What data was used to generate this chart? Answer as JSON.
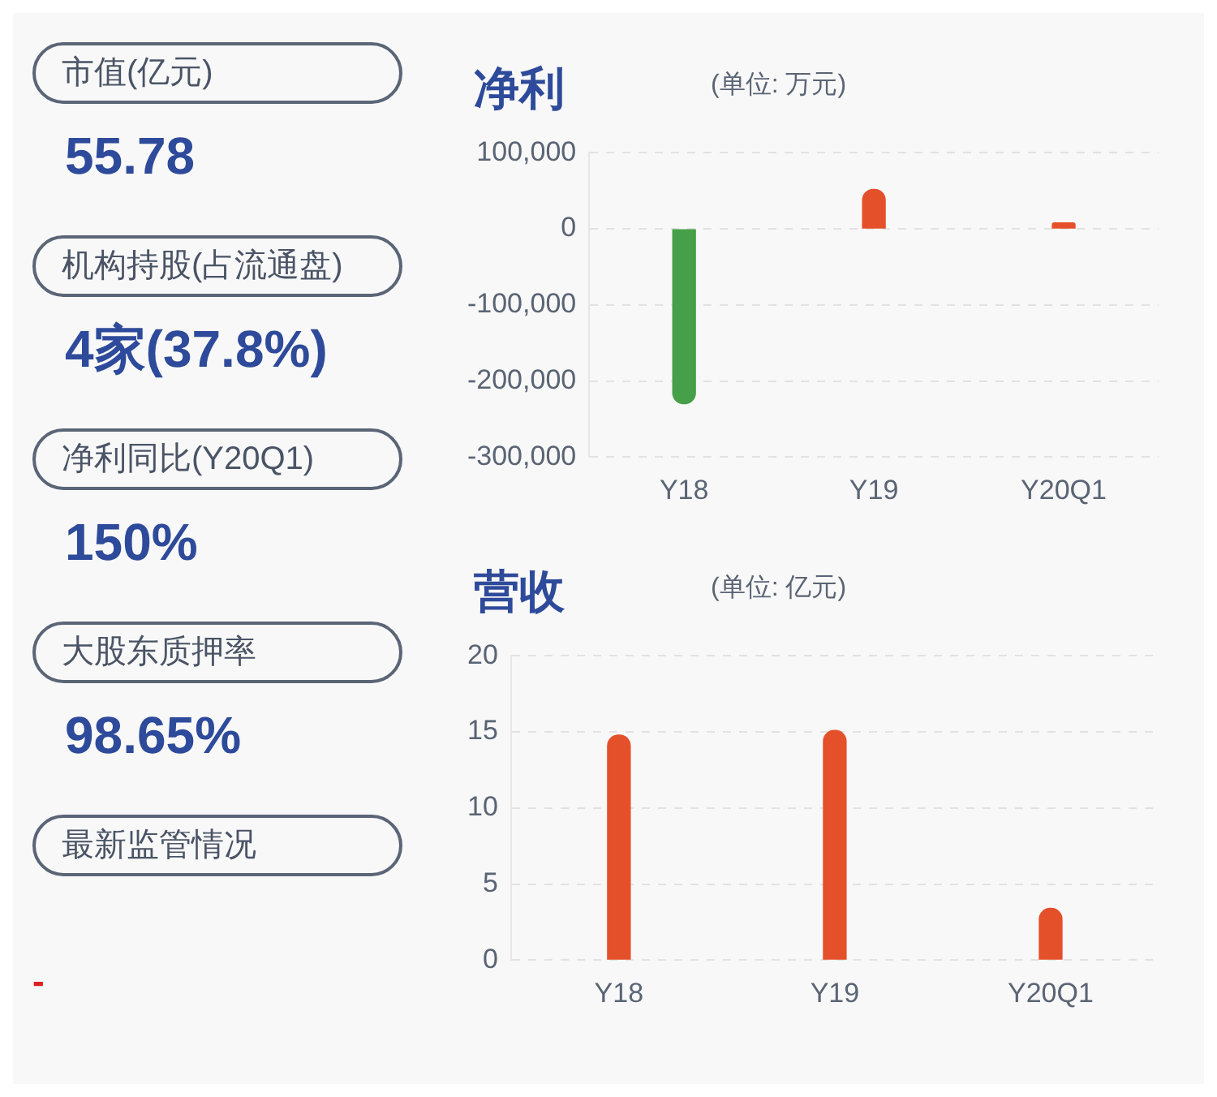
{
  "chart_data": [
    {
      "type": "other",
      "annotations": [
        "市值(亿元)",
        "55.78",
        "机构持股(占流通盘)",
        "4家(37.8%)",
        "净利同比(Y20Q1)",
        "150%",
        "大股东质押率",
        "98.65%",
        "最新监管情况",
        "-"
      ]
    },
    {
      "type": "bar",
      "title": "净利",
      "subtitle": "(单位: 万元)",
      "categories": [
        "Y18",
        "Y19",
        "Y20Q1"
      ],
      "values": [
        -230000,
        52000,
        8000
      ],
      "colors": [
        "#45a049",
        "#e4502a",
        "#e4502a"
      ],
      "ylim": [
        -300000,
        100000
      ],
      "yticks": [
        {
          "value": -300000,
          "label": "-300,000"
        },
        {
          "value": -200000,
          "label": "-200,000"
        },
        {
          "value": -100000,
          "label": "-100,000"
        },
        0,
        {
          "value": 100000,
          "label": "100,000"
        }
      ],
      "grid": "y"
    },
    {
      "type": "bar",
      "title": "营收",
      "subtitle": "(单位: 亿元)",
      "categories": [
        "Y18",
        "Y19",
        "Y20Q1"
      ],
      "values": [
        14.8,
        15.1,
        3.4
      ],
      "colors": [
        "#e4502a",
        "#e4502a",
        "#e4502a"
      ],
      "ylim": [
        0,
        20
      ],
      "yticks": [
        0,
        5,
        10,
        15,
        20
      ],
      "grid": "y"
    }
  ]
}
